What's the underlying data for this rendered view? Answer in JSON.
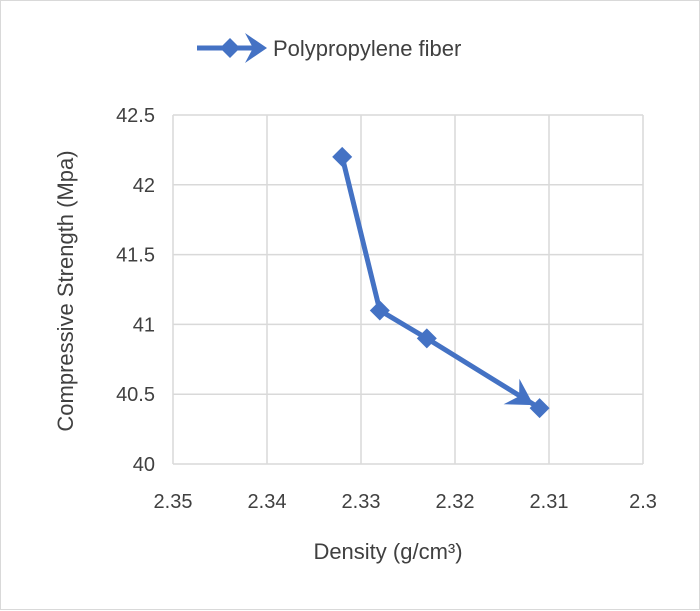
{
  "chart_data": {
    "type": "line",
    "title": "",
    "xlabel": "Density (g/cm³)",
    "ylabel": "Compressive Strength (Mpa)",
    "xlim": [
      2.35,
      2.3
    ],
    "x_reversed": true,
    "ylim": [
      40,
      42.5
    ],
    "xticks": [
      "2.35",
      "2.34",
      "2.33",
      "2.32",
      "2.31",
      "2.3"
    ],
    "yticks": [
      "40",
      "40.5",
      "41",
      "41.5",
      "42",
      "42.5"
    ],
    "grid": true,
    "legend_position": "top",
    "series": [
      {
        "name": "Polypropylene fiber",
        "color": "#4472c4",
        "marker": "diamond",
        "end_arrow": true,
        "x": [
          2.332,
          2.328,
          2.323,
          2.311
        ],
        "y": [
          42.2,
          41.1,
          40.9,
          40.4
        ]
      }
    ]
  }
}
